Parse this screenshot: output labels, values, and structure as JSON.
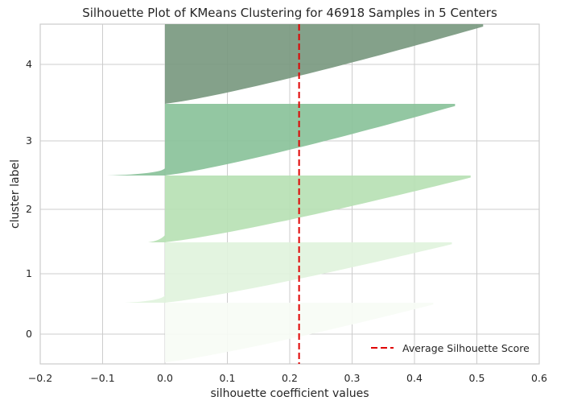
{
  "chart_data": {
    "type": "area",
    "title": "Silhouette Plot of KMeans Clustering for 46918 Samples in 5 Centers",
    "xlabel": "silhouette coefficient values",
    "ylabel": "cluster label",
    "xlim": [
      -0.2,
      0.6
    ],
    "xticks": [
      "−0.2",
      "−0.1",
      "0.0",
      "0.1",
      "0.2",
      "0.3",
      "0.4",
      "0.5",
      "0.6"
    ],
    "yticks": [
      "0",
      "1",
      "2",
      "3",
      "4"
    ],
    "grid": true,
    "legend_position": "bottom-right",
    "average_silhouette_score": 0.215,
    "series": [
      {
        "cluster": 0,
        "silhouette_min": 0.0,
        "silhouette_max": 0.43,
        "negative_min": null,
        "color": "#f7fcf5"
      },
      {
        "cluster": 1,
        "silhouette_min": 0.0,
        "silhouette_max": 0.46,
        "negative_min": -0.065,
        "color": "#e1f3dd"
      },
      {
        "cluster": 2,
        "silhouette_min": 0.0,
        "silhouette_max": 0.49,
        "negative_min": -0.027,
        "color": "#b7e1b4"
      },
      {
        "cluster": 3,
        "silhouette_min": 0.0,
        "silhouette_max": 0.465,
        "negative_min": -0.093,
        "color": "#8ac29a"
      },
      {
        "cluster": 4,
        "silhouette_min": 0.0,
        "silhouette_max": 0.51,
        "negative_min": null,
        "color": "#799980"
      }
    ],
    "legend": {
      "label": "Average Silhouette Score",
      "color": "#e00000"
    }
  }
}
